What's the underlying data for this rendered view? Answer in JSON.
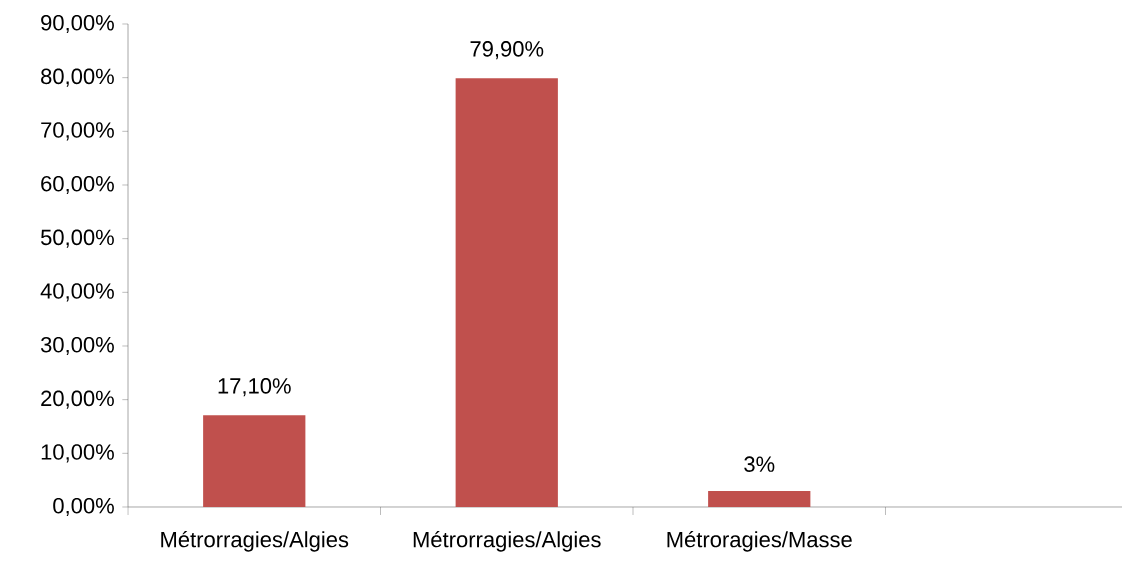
{
  "chart_data": {
    "type": "bar",
    "categories": [
      "Métrorragies/Algies",
      "Métrorragies/Algies",
      "Métroragies/Masse",
      null
    ],
    "values": [
      17.1,
      79.9,
      3,
      null
    ],
    "value_labels": [
      "17,10%",
      "79,90%",
      "3%",
      null
    ],
    "color": "#c0504d",
    "ylim": [
      0,
      90
    ],
    "yticks": [
      {
        "value": 0,
        "label": "0,00%"
      },
      {
        "value": 10,
        "label": "10,00%"
      },
      {
        "value": 20,
        "label": "20,00%"
      },
      {
        "value": 30,
        "label": "30,00%"
      },
      {
        "value": 40,
        "label": "40,00%"
      },
      {
        "value": 50,
        "label": "50,00%"
      },
      {
        "value": 60,
        "label": "60,00%"
      },
      {
        "value": 70,
        "label": "70,00%"
      },
      {
        "value": 80,
        "label": "80,00%"
      },
      {
        "value": 90,
        "label": "90,00%"
      }
    ]
  }
}
